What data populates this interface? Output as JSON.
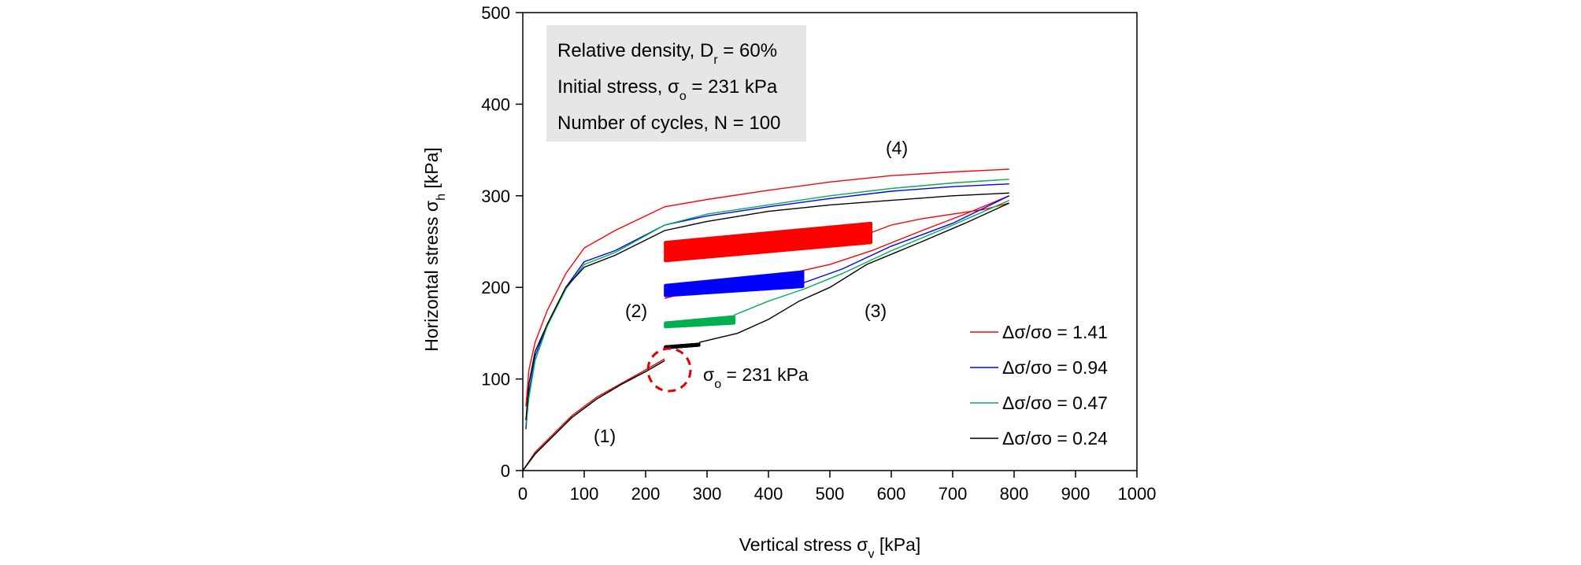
{
  "chart_data": {
    "type": "line",
    "xlabel": "Vertical stress σ",
    "xlabel_sub": "v",
    "xlabel_unit": " [kPa]",
    "ylabel": "Horizontal stress σ",
    "ylabel_sub": "h",
    "ylabel_unit": " [kPa]",
    "xlim": [
      0,
      1000
    ],
    "ylim": [
      0,
      500
    ],
    "xticks": [
      0,
      100,
      200,
      300,
      400,
      500,
      600,
      700,
      800,
      900,
      1000
    ],
    "yticks": [
      0,
      100,
      200,
      300,
      400,
      500
    ],
    "grid": false,
    "legend_position": "bottom-right",
    "info_box": {
      "line1": {
        "text": "Relative density, D",
        "sub": "r",
        "after": " = 60%"
      },
      "line2": {
        "text": "Initial stress, σ",
        "sub": "o",
        "after": " = 231 kPa"
      },
      "line3": {
        "text": "Number of cycles, N = 100",
        "sub": "",
        "after": ""
      }
    },
    "annotations": {
      "stage1": "(1)",
      "stage2": "(2)",
      "stage3": "(3)",
      "stage4": "(4)",
      "sigma0_label": {
        "text": "σ",
        "sub": "o",
        "after": " = 231 kPa"
      }
    },
    "series": [
      {
        "name": "Δσ/σo = 1.41",
        "color": "#ff0000",
        "loading1": [
          [
            0,
            0
          ],
          [
            20,
            20
          ],
          [
            50,
            40
          ],
          [
            80,
            60
          ],
          [
            120,
            80
          ],
          [
            160,
            95
          ],
          [
            200,
            110
          ],
          [
            231,
            122
          ]
        ],
        "cycle_range": [
          231,
          568
        ],
        "cycle_band": {
          "lower_start": 228,
          "lower_end": 248,
          "upper_start": 250,
          "upper_end": 271
        },
        "reload": [
          [
            568,
            260
          ],
          [
            600,
            268
          ],
          [
            650,
            275
          ],
          [
            700,
            280
          ],
          [
            750,
            285
          ],
          [
            792,
            292
          ]
        ],
        "upper": [
          [
            792,
            329
          ],
          [
            700,
            326
          ],
          [
            600,
            322
          ],
          [
            500,
            315
          ],
          [
            400,
            306
          ],
          [
            300,
            296
          ],
          [
            231,
            288
          ],
          [
            150,
            262
          ],
          [
            100,
            243
          ],
          [
            70,
            215
          ],
          [
            40,
            175
          ],
          [
            20,
            140
          ],
          [
            10,
            110
          ],
          [
            5,
            70
          ]
        ],
        "unload3": [
          [
            231,
            188
          ],
          [
            300,
            200
          ],
          [
            400,
            210
          ],
          [
            500,
            225
          ],
          [
            568,
            240
          ],
          [
            650,
            262
          ],
          [
            720,
            280
          ],
          [
            792,
            300
          ]
        ]
      },
      {
        "name": "Δσ/σo = 0.94",
        "color": "#0000ff",
        "loading1": [
          [
            0,
            0
          ],
          [
            20,
            18
          ],
          [
            50,
            38
          ],
          [
            80,
            58
          ],
          [
            120,
            78
          ],
          [
            160,
            94
          ],
          [
            200,
            108
          ],
          [
            231,
            120
          ]
        ],
        "cycle_range": [
          231,
          457
        ],
        "cycle_band": {
          "lower_start": 190,
          "lower_end": 200,
          "upper_start": 203,
          "upper_end": 218
        },
        "reload": [
          [
            457,
            205
          ],
          [
            520,
            220
          ],
          [
            600,
            245
          ],
          [
            700,
            270
          ],
          [
            792,
            300
          ]
        ],
        "upper": [
          [
            792,
            313
          ],
          [
            700,
            310
          ],
          [
            600,
            305
          ],
          [
            500,
            297
          ],
          [
            400,
            288
          ],
          [
            300,
            278
          ],
          [
            231,
            268
          ],
          [
            150,
            240
          ],
          [
            100,
            228
          ],
          [
            70,
            200
          ],
          [
            40,
            160
          ],
          [
            20,
            125
          ],
          [
            10,
            85
          ],
          [
            5,
            45
          ]
        ],
        "unload3": []
      },
      {
        "name": "Δσ/σo = 0.47",
        "color": "#00b050",
        "loading1": [
          [
            0,
            0
          ],
          [
            20,
            18
          ],
          [
            50,
            38
          ],
          [
            80,
            58
          ],
          [
            120,
            78
          ],
          [
            160,
            94
          ],
          [
            200,
            108
          ],
          [
            231,
            120
          ]
        ],
        "cycle_range": [
          231,
          345
        ],
        "cycle_band": {
          "lower_start": 156,
          "lower_end": 160,
          "upper_start": 162,
          "upper_end": 169
        },
        "reload": [
          [
            345,
            170
          ],
          [
            400,
            185
          ],
          [
            457,
            198
          ],
          [
            520,
            215
          ],
          [
            600,
            240
          ],
          [
            700,
            268
          ],
          [
            792,
            295
          ]
        ],
        "upper": [
          [
            792,
            318
          ],
          [
            700,
            314
          ],
          [
            600,
            308
          ],
          [
            500,
            300
          ],
          [
            400,
            290
          ],
          [
            300,
            280
          ],
          [
            231,
            268
          ],
          [
            150,
            238
          ],
          [
            100,
            225
          ],
          [
            70,
            198
          ],
          [
            40,
            158
          ],
          [
            20,
            120
          ],
          [
            10,
            80
          ],
          [
            5,
            50
          ]
        ],
        "unload3": []
      },
      {
        "name": "Δσ/σo = 0.24",
        "color": "#000000",
        "loading1": [
          [
            0,
            0
          ],
          [
            20,
            18
          ],
          [
            50,
            38
          ],
          [
            80,
            58
          ],
          [
            120,
            78
          ],
          [
            160,
            94
          ],
          [
            200,
            108
          ],
          [
            231,
            120
          ]
        ],
        "cycle_range": [
          231,
          288
        ],
        "cycle_band": {
          "lower_start": 133,
          "lower_end": 136,
          "upper_start": 136,
          "upper_end": 139
        },
        "reload": [
          [
            288,
            140
          ],
          [
            350,
            150
          ],
          [
            400,
            165
          ],
          [
            450,
            185
          ],
          [
            500,
            200
          ],
          [
            560,
            225
          ],
          [
            650,
            250
          ],
          [
            720,
            270
          ],
          [
            792,
            292
          ]
        ],
        "upper": [
          [
            792,
            303
          ],
          [
            700,
            300
          ],
          [
            600,
            295
          ],
          [
            500,
            290
          ],
          [
            400,
            283
          ],
          [
            300,
            272
          ],
          [
            231,
            262
          ],
          [
            150,
            235
          ],
          [
            100,
            222
          ],
          [
            70,
            200
          ],
          [
            40,
            160
          ],
          [
            20,
            130
          ],
          [
            10,
            95
          ],
          [
            5,
            55
          ]
        ],
        "unload3": []
      }
    ]
  }
}
